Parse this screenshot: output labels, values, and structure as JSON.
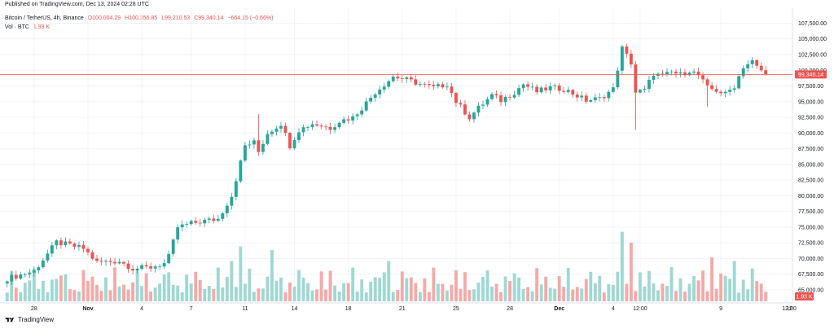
{
  "published_line": "Published on TradingView.com, Dec 13, 2024 02:28 UTC",
  "legend": {
    "symbol": "Bitcoin / TetherUS, 4h, Binance",
    "open": "O100,004.29",
    "high": "H100,356.85",
    "low": "L99,210.53",
    "close": "C99,340.14",
    "change": "−664.15 (−0.66%)",
    "vol_label": "Vol · BTC",
    "vol_value": "1.93 K"
  },
  "price_label": "99,340.14",
  "volume_label": "1.93 K",
  "footer_brand": "TradingView",
  "colors": {
    "up": "#26a69a",
    "down": "#ef5350",
    "up_vol": "#9fd8d2",
    "down_vol": "#f5a9a7",
    "grid": "#f0f3fa",
    "price_line": "#ef5350"
  },
  "chart_data": {
    "type": "candlestick",
    "title": "Bitcoin / TetherUS, 4h, Binance",
    "y_ticks": [
      "107,500.00",
      "105,000.00",
      "102,500.00",
      "100,000.00",
      "97,500.00",
      "95,000.00",
      "92,500.00",
      "90,000.00",
      "87,500.00",
      "85,000.00",
      "82,500.00",
      "80,000.00",
      "77,500.00",
      "75,000.00",
      "72,500.00",
      "70,000.00",
      "67,500.00",
      "65,000.00"
    ],
    "y_tick_values": [
      107500,
      105000,
      102500,
      100000,
      97500,
      95000,
      92500,
      90000,
      87500,
      85000,
      82500,
      80000,
      77500,
      75000,
      72500,
      70000,
      67500,
      65000
    ],
    "ylim": [
      63700,
      108600
    ],
    "x_ticks": [
      "28",
      "Nov",
      "4",
      "7",
      "11",
      "14",
      "18",
      "21",
      "25",
      "28",
      "Dec",
      "4",
      "12:00",
      "9",
      "12",
      "12:00"
    ],
    "x_tick_index": [
      6,
      18,
      30,
      41,
      53,
      64,
      76,
      88,
      100,
      112,
      123,
      135,
      141,
      159,
      171,
      183
    ],
    "last_price": 99340.14,
    "price_path": [
      {
        "i": 0,
        "p": 66800
      },
      {
        "i": 6,
        "p": 68000
      },
      {
        "i": 11,
        "p": 72600
      },
      {
        "i": 17,
        "p": 71600
      },
      {
        "i": 20,
        "p": 69400
      },
      {
        "i": 25,
        "p": 69600
      },
      {
        "i": 28,
        "p": 68400
      },
      {
        "i": 32,
        "p": 68600
      },
      {
        "i": 35,
        "p": 69200
      },
      {
        "i": 36,
        "p": 70300
      },
      {
        "i": 38,
        "p": 75000
      },
      {
        "i": 41,
        "p": 75600
      },
      {
        "i": 44,
        "p": 76000
      },
      {
        "i": 47,
        "p": 76300
      },
      {
        "i": 50,
        "p": 80000
      },
      {
        "i": 53,
        "p": 88000
      },
      {
        "i": 55,
        "p": 88500
      },
      {
        "i": 56,
        "p": 87000
      },
      {
        "i": 58,
        "p": 90000
      },
      {
        "i": 61,
        "p": 91500
      },
      {
        "i": 63,
        "p": 88000
      },
      {
        "i": 65,
        "p": 90500
      },
      {
        "i": 68,
        "p": 91500
      },
      {
        "i": 72,
        "p": 90800
      },
      {
        "i": 74,
        "p": 91900
      },
      {
        "i": 77,
        "p": 92500
      },
      {
        "i": 79,
        "p": 94000
      },
      {
        "i": 82,
        "p": 96500
      },
      {
        "i": 86,
        "p": 99000
      },
      {
        "i": 89,
        "p": 98500
      },
      {
        "i": 92,
        "p": 97800
      },
      {
        "i": 95,
        "p": 97200
      },
      {
        "i": 98,
        "p": 97800
      },
      {
        "i": 100,
        "p": 95000
      },
      {
        "i": 103,
        "p": 92500
      },
      {
        "i": 105,
        "p": 94000
      },
      {
        "i": 108,
        "p": 96000
      },
      {
        "i": 110,
        "p": 95200
      },
      {
        "i": 113,
        "p": 96500
      },
      {
        "i": 115,
        "p": 97800
      },
      {
        "i": 118,
        "p": 96600
      },
      {
        "i": 121,
        "p": 97200
      },
      {
        "i": 124,
        "p": 97000
      },
      {
        "i": 126,
        "p": 96300
      },
      {
        "i": 129,
        "p": 95200
      },
      {
        "i": 132,
        "p": 95500
      },
      {
        "i": 135,
        "p": 97000
      },
      {
        "i": 137,
        "p": 103500
      },
      {
        "i": 139,
        "p": 101200
      },
      {
        "i": 140,
        "p": 96500
      },
      {
        "i": 142,
        "p": 96800
      },
      {
        "i": 144,
        "p": 99500
      },
      {
        "i": 146,
        "p": 99000
      },
      {
        "i": 148,
        "p": 99700
      },
      {
        "i": 150,
        "p": 99300
      },
      {
        "i": 152,
        "p": 100000
      },
      {
        "i": 154,
        "p": 99200
      },
      {
        "i": 156,
        "p": 97200
      },
      {
        "i": 158,
        "p": 96800
      },
      {
        "i": 160,
        "p": 96200
      },
      {
        "i": 162,
        "p": 97500
      },
      {
        "i": 164,
        "p": 100600
      },
      {
        "i": 166,
        "p": 101400
      },
      {
        "i": 167,
        "p": 100500
      },
      {
        "i": 168,
        "p": 100004
      },
      {
        "i": 169,
        "p": 99340
      }
    ],
    "wick_spikes": [
      {
        "i": 140,
        "low": 90500
      },
      {
        "i": 156,
        "low": 94200
      },
      {
        "i": 56,
        "high": 93000
      }
    ],
    "volume_peaks": [
      {
        "i": 50,
        "v": 0.55
      },
      {
        "i": 52,
        "v": 0.75
      },
      {
        "i": 59,
        "v": 0.7
      },
      {
        "i": 85,
        "v": 0.55
      },
      {
        "i": 137,
        "v": 0.95
      },
      {
        "i": 139,
        "v": 0.8
      },
      {
        "i": 157,
        "v": 0.6
      },
      {
        "i": 162,
        "v": 0.55
      }
    ],
    "candle_count": 170
  }
}
